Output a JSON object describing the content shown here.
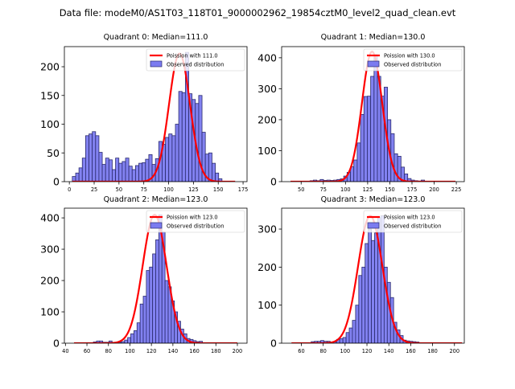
{
  "suptitle": "Data file: modeM0/AS1T03_118T01_9000002962_19854cztM0_level2_quad_clean.evt",
  "colors": {
    "bar_fill": "#7b7bf0",
    "bar_edge": "#2b2b6e",
    "curve": "#ff0000",
    "axes": "#000000"
  },
  "chart_data": [
    {
      "type": "bar",
      "title": "Quadrant 0: Median=111.0",
      "xlabel": "",
      "ylabel": "",
      "xlim": [
        -5,
        179
      ],
      "ylim": [
        0,
        235
      ],
      "xticks": [
        0,
        25,
        50,
        75,
        100,
        125,
        150,
        175
      ],
      "yticks": [
        0,
        50,
        100,
        150,
        200
      ],
      "grid": false,
      "legend": {
        "placement": "top-right",
        "entries": [
          "Poission with 111.0",
          "Observed distribution"
        ]
      },
      "bin_start": 3,
      "bin_width": 3.35,
      "values": [
        9,
        15,
        24,
        41,
        80,
        83,
        87,
        80,
        51,
        30,
        41,
        38,
        21,
        41,
        32,
        35,
        41,
        27,
        21,
        28,
        32,
        33,
        39,
        47,
        30,
        40,
        70,
        65,
        77,
        83,
        80,
        100,
        157,
        155,
        225,
        153,
        143,
        136,
        150,
        86,
        48,
        50,
        32,
        15,
        5
      ],
      "curve": {
        "label": "Poission with 111.0",
        "mean": 111.0,
        "peak": 223,
        "x_range": [
          3,
          167
        ]
      }
    },
    {
      "type": "bar",
      "title": "Quadrant 1: Median=130.0",
      "xlabel": "",
      "ylabel": "",
      "xlim": [
        28,
        234
      ],
      "ylim": [
        0,
        436
      ],
      "xticks": [
        50,
        75,
        100,
        125,
        150,
        175,
        200,
        225
      ],
      "yticks": [
        0,
        100,
        200,
        300,
        400
      ],
      "grid": false,
      "legend": {
        "placement": "top-right",
        "entries": [
          "Poission with 130.0",
          "Observed distribution"
        ]
      },
      "bin_start": 60,
      "bin_width": 3.8,
      "values": [
        3,
        5,
        3,
        7,
        4,
        5,
        4,
        5,
        7,
        9,
        18,
        30,
        48,
        70,
        125,
        217,
        275,
        276,
        340,
        410,
        340,
        276,
        305,
        200,
        155,
        90,
        82,
        47,
        25,
        10,
        5,
        3,
        2,
        5
      ],
      "curve": {
        "label": "Poission with 130.0",
        "mean": 130.0,
        "peak": 420,
        "x_range": [
          38,
          224
        ]
      }
    },
    {
      "type": "bar",
      "title": "Quadrant 2: Median=123.0",
      "xlabel": "",
      "ylabel": "",
      "xlim": [
        39,
        209
      ],
      "ylim": [
        0,
        431
      ],
      "xticks": [
        40,
        60,
        80,
        100,
        120,
        140,
        160,
        180,
        200
      ],
      "yticks": [
        0,
        100,
        200,
        300,
        400
      ],
      "grid": false,
      "legend": {
        "placement": "top-right",
        "entries": [
          "Poission with 123.0",
          "Observed distribution"
        ]
      },
      "bin_start": 66,
      "bin_width": 2.9,
      "values": [
        4,
        7,
        7,
        3,
        3,
        7,
        2,
        2,
        3,
        5,
        10,
        18,
        30,
        40,
        65,
        125,
        150,
        232,
        243,
        285,
        330,
        410,
        355,
        200,
        180,
        135,
        100,
        70,
        45,
        30,
        15,
        12,
        8,
        5,
        6
      ],
      "curve": {
        "label": "Poission with 123.0",
        "mean": 123.0,
        "peak": 410,
        "x_range": [
          48,
          200
        ]
      }
    },
    {
      "type": "bar",
      "title": "Quadrant 3: Median=123.0",
      "xlabel": "",
      "ylabel": "",
      "xlim": [
        42,
        209
      ],
      "ylim": [
        0,
        355
      ],
      "xticks": [
        60,
        80,
        100,
        120,
        140,
        160,
        180,
        200
      ],
      "yticks": [
        0,
        100,
        200,
        300
      ],
      "grid": false,
      "legend": {
        "placement": "top-right",
        "entries": [
          "Poission with 123.0",
          "Observed distribution"
        ]
      },
      "bin_start": 69,
      "bin_width": 2.9,
      "values": [
        4,
        5,
        5,
        7,
        5,
        5,
        3,
        3,
        10,
        12,
        15,
        28,
        40,
        60,
        100,
        178,
        200,
        262,
        300,
        270,
        290,
        330,
        335,
        200,
        160,
        120,
        55,
        35,
        20,
        8,
        6,
        5,
        4,
        3
      ],
      "curve": {
        "label": "Poission with 123.0",
        "mean": 123.0,
        "peak": 335,
        "x_range": [
          51,
          207
        ]
      }
    }
  ]
}
